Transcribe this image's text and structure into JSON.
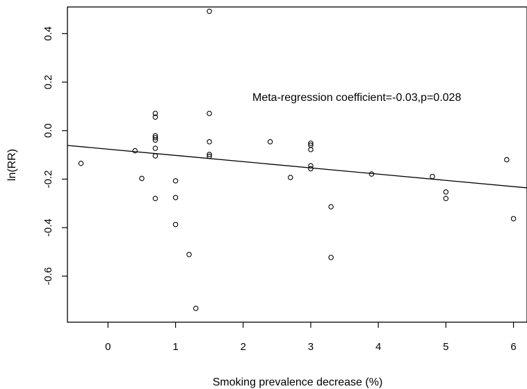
{
  "chart_data": {
    "type": "scatter",
    "title": "",
    "xlabel": "Smoking prevalence decrease (%)",
    "ylabel": "ln(RR)",
    "xlim": [
      -0.6,
      6.2
    ],
    "ylim": [
      -0.79,
      0.51
    ],
    "xticks": [
      0,
      1,
      2,
      3,
      4,
      5,
      6
    ],
    "yticks": [
      -0.6,
      -0.4,
      -0.2,
      0.0,
      0.2,
      0.4
    ],
    "xtick_labels": [
      "0",
      "1",
      "2",
      "3",
      "4",
      "5",
      "6"
    ],
    "ytick_labels": [
      "-0.6",
      "-0.4",
      "-0.2",
      "0.0",
      "0.2",
      "0.4"
    ],
    "grid": false,
    "annotation": "Meta-regression coefficient=-0.03,p=0.028",
    "regression_line": {
      "x": [
        -0.6,
        6.2
      ],
      "y": [
        -0.061,
        -0.236
      ]
    },
    "points": [
      {
        "x": -0.4,
        "y": -0.135
      },
      {
        "x": 0.4,
        "y": -0.083
      },
      {
        "x": 0.5,
        "y": -0.197
      },
      {
        "x": 0.7,
        "y": 0.071
      },
      {
        "x": 0.7,
        "y": 0.056
      },
      {
        "x": 0.7,
        "y": -0.021
      },
      {
        "x": 0.7,
        "y": -0.029
      },
      {
        "x": 0.7,
        "y": -0.039
      },
      {
        "x": 0.7,
        "y": -0.073
      },
      {
        "x": 0.7,
        "y": -0.104
      },
      {
        "x": 0.7,
        "y": -0.28
      },
      {
        "x": 1.0,
        "y": -0.207
      },
      {
        "x": 1.0,
        "y": -0.276
      },
      {
        "x": 1.0,
        "y": -0.387
      },
      {
        "x": 1.2,
        "y": -0.511
      },
      {
        "x": 1.3,
        "y": -0.733
      },
      {
        "x": 1.5,
        "y": 0.492
      },
      {
        "x": 1.5,
        "y": 0.071
      },
      {
        "x": 1.5,
        "y": -0.046
      },
      {
        "x": 1.5,
        "y": -0.098
      },
      {
        "x": 1.5,
        "y": -0.106
      },
      {
        "x": 2.4,
        "y": -0.046
      },
      {
        "x": 2.7,
        "y": -0.193
      },
      {
        "x": 3.0,
        "y": -0.052
      },
      {
        "x": 3.0,
        "y": -0.06
      },
      {
        "x": 3.0,
        "y": -0.078
      },
      {
        "x": 3.0,
        "y": -0.145
      },
      {
        "x": 3.0,
        "y": -0.157
      },
      {
        "x": 3.3,
        "y": -0.314
      },
      {
        "x": 3.3,
        "y": -0.523
      },
      {
        "x": 3.9,
        "y": -0.179
      },
      {
        "x": 4.8,
        "y": -0.189
      },
      {
        "x": 5.0,
        "y": -0.253
      },
      {
        "x": 5.0,
        "y": -0.28
      },
      {
        "x": 5.9,
        "y": -0.12
      },
      {
        "x": 6.0,
        "y": -0.363
      }
    ]
  }
}
